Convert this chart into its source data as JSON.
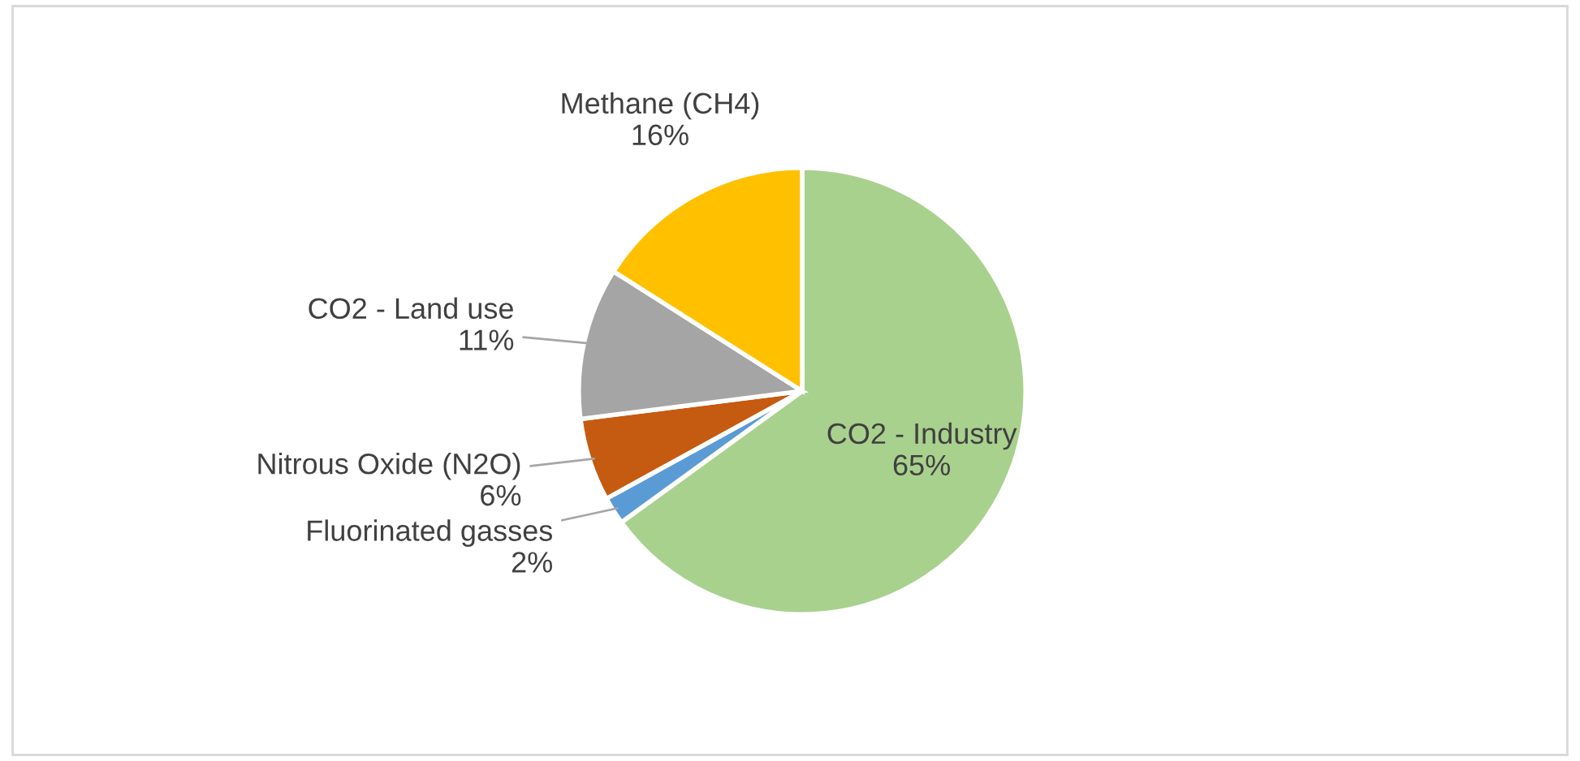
{
  "chart_data": {
    "type": "pie",
    "categories": [
      "CO2 - Industry",
      "Fluorinated gasses",
      "Nitrous Oxide (N2O)",
      "CO2 - Land use",
      "Methane (CH4)"
    ],
    "values": [
      65,
      2,
      6,
      11,
      16
    ],
    "colors": [
      "#a9d18e",
      "#5b9bd5",
      "#c55a11",
      "#a5a5a5",
      "#ffc000"
    ],
    "value_labels": [
      "65%",
      "2%",
      "6%",
      "11%",
      "16%"
    ],
    "legend": false
  }
}
